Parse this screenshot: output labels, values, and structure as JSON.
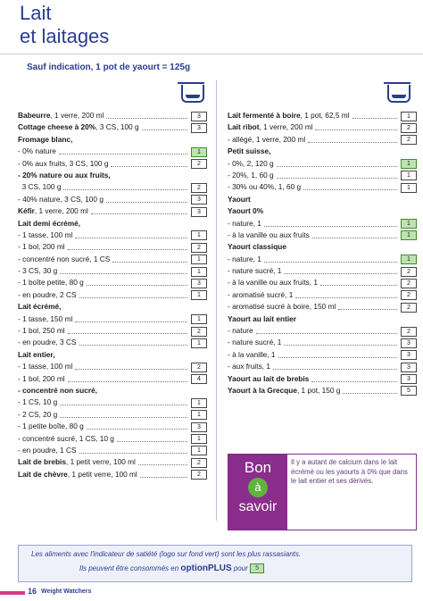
{
  "title_line1": "Lait",
  "title_line2": "et laitages",
  "subtitle": "Sauf indication, 1 pot de yaourt = 125g",
  "cup_icon": "yogurt-cup-icon",
  "left_rows": [
    {
      "t": "<b>Babeurre</b>, 1 verre, 200 ml",
      "v": "3",
      "g": false
    },
    {
      "t": "<b>Cottage cheese à 20%</b>, 3 CS, 100 g",
      "v": "3",
      "g": false
    },
    {
      "t": "<b>Fromage blanc,</b>",
      "v": "",
      "g": false
    },
    {
      "t": "- 0% nature",
      "v": "1",
      "g": true
    },
    {
      "t": "- 0% aux fruits, 3 CS, 100 g",
      "v": "2",
      "g": false
    },
    {
      "t": "- 20% nature ou aux fruits,",
      "v": "",
      "g": false
    },
    {
      "t": "&nbsp;&nbsp;3 CS, 100 g",
      "v": "2",
      "g": false
    },
    {
      "t": "- 40% nature, 3 CS, 100 g",
      "v": "3",
      "g": false
    },
    {
      "t": "<b>Kéfir</b>, 1 verre, 200 ml",
      "v": "3",
      "g": false
    },
    {
      "t": "<b>Lait demi écrémé,</b>",
      "v": "",
      "g": false
    },
    {
      "t": "- 1 tasse, 100 ml",
      "v": "1",
      "g": false
    },
    {
      "t": "- 1 bol, 200 ml",
      "v": "2",
      "g": false
    },
    {
      "t": "- concentré non sucré, 1 CS",
      "v": "1",
      "g": false
    },
    {
      "t": "- 3 CS, 30 g",
      "v": "1",
      "g": false
    },
    {
      "t": "- 1 boîte petite, 80 g",
      "v": "3",
      "g": false
    },
    {
      "t": "- en poudre, 2 CS",
      "v": "1",
      "g": false
    },
    {
      "t": "<b>Lait écrémé,</b>",
      "v": "",
      "g": false
    },
    {
      "t": "- 1 tasse, 150 ml",
      "v": "1",
      "g": false
    },
    {
      "t": "- 1 bol, 250 ml",
      "v": "2",
      "g": false
    },
    {
      "t": "- en poudre, 3 CS",
      "v": "1",
      "g": false
    },
    {
      "t": "<b>Lait entier,</b>",
      "v": "",
      "g": false
    },
    {
      "t": "- 1 tasse, 100 ml",
      "v": "2",
      "g": false
    },
    {
      "t": "- 1 bol, 200 ml",
      "v": "4",
      "g": false
    },
    {
      "t": "- concentré non sucré,",
      "v": "",
      "g": false
    },
    {
      "t": "- 1 CS, 10 g",
      "v": "1",
      "g": false
    },
    {
      "t": "- 2 CS, 20 g",
      "v": "1",
      "g": false
    },
    {
      "t": "- 1 petite boîte, 80 g",
      "v": "3",
      "g": false
    },
    {
      "t": "- concentré sucré, 1 CS, 10 g",
      "v": "1",
      "g": false
    },
    {
      "t": "- en poudre, 1 CS",
      "v": "1",
      "g": false
    },
    {
      "t": "<b>Lait de brebis</b>, 1 petit verre, 100 ml",
      "v": "2",
      "g": false
    },
    {
      "t": "<b>Lait de chèvre</b>, 1 petit verre, 100 ml",
      "v": "2",
      "g": false
    }
  ],
  "right_rows": [
    {
      "t": "<b>Lait fermenté à boire</b>, 1 pot, 62,5 ml",
      "v": "1",
      "g": false
    },
    {
      "t": "<b>Lait ribot</b>, 1 verre, 200 ml",
      "v": "2",
      "g": false
    },
    {
      "t": "- allégé, 1 verre, 200 ml",
      "v": "2",
      "g": false
    },
    {
      "t": "<b>Petit suisse,</b>",
      "v": "",
      "g": false
    },
    {
      "t": "- 0%, 2, 120 g",
      "v": "1",
      "g": true
    },
    {
      "t": "- 20%, 1, 60 g",
      "v": "1",
      "g": false
    },
    {
      "t": "- 30% ou 40%, 1, 60 g",
      "v": "1",
      "g": false
    },
    {
      "t": "<b>Yaourt</b>",
      "v": "",
      "g": false
    },
    {
      "t": "<b>Yaourt 0%</b>",
      "v": "",
      "g": false
    },
    {
      "t": "- nature, 1",
      "v": "1",
      "g": true
    },
    {
      "t": "- à la vanille ou aux fruits",
      "v": "1",
      "g": true
    },
    {
      "t": "<b>Yaourt classique</b>",
      "v": "",
      "g": false
    },
    {
      "t": "- nature, 1",
      "v": "1",
      "g": true
    },
    {
      "t": "- nature sucré, 1",
      "v": "2",
      "g": false
    },
    {
      "t": "- à la vanille ou aux fruits, 1",
      "v": "2",
      "g": false
    },
    {
      "t": "- aromatisé sucré, 1",
      "v": "2",
      "g": false
    },
    {
      "t": "- aromatisé sucré à boire, 150 ml",
      "v": "2",
      "g": false
    },
    {
      "t": "<b>Yaourt au lait entier</b>",
      "v": "",
      "g": false
    },
    {
      "t": "- nature",
      "v": "2",
      "g": false
    },
    {
      "t": "- nature sucré, 1",
      "v": "3",
      "g": false
    },
    {
      "t": "- à la vanille, 1",
      "v": "3",
      "g": false
    },
    {
      "t": "- aux fruits, 1",
      "v": "3",
      "g": false
    },
    {
      "t": "<b>Yaourt au lait de brebis</b>",
      "v": "3",
      "g": false
    },
    {
      "t": "<b>Yaourt à la Grecque</b>, 1 pot, 150 g",
      "v": "5",
      "g": false
    }
  ],
  "bon_savoir": {
    "word1": "Bon",
    "word2": "à",
    "word3": "savoir",
    "text": "Il y a autant de calcium dans le lait écrémé ou les yaourts à 0% que dans le lait entier et ses dérivés."
  },
  "bottom": {
    "line1": "Les aliments avec l'indicateur de satiété (logo sur fond vert) sont les plus rassasiants.",
    "line2": "Ils peuvent être consommés en",
    "option": "optionPLUS",
    "line2b": "pour",
    "pbox": "5"
  },
  "footer": {
    "page": "16",
    "brand": "Weight Watchers"
  },
  "colors": {
    "brand_blue": "#2b3d8f",
    "purple": "#8b2d8c",
    "satiety_green": "#bfe3b0",
    "footer_pink": "#d63b8a"
  }
}
